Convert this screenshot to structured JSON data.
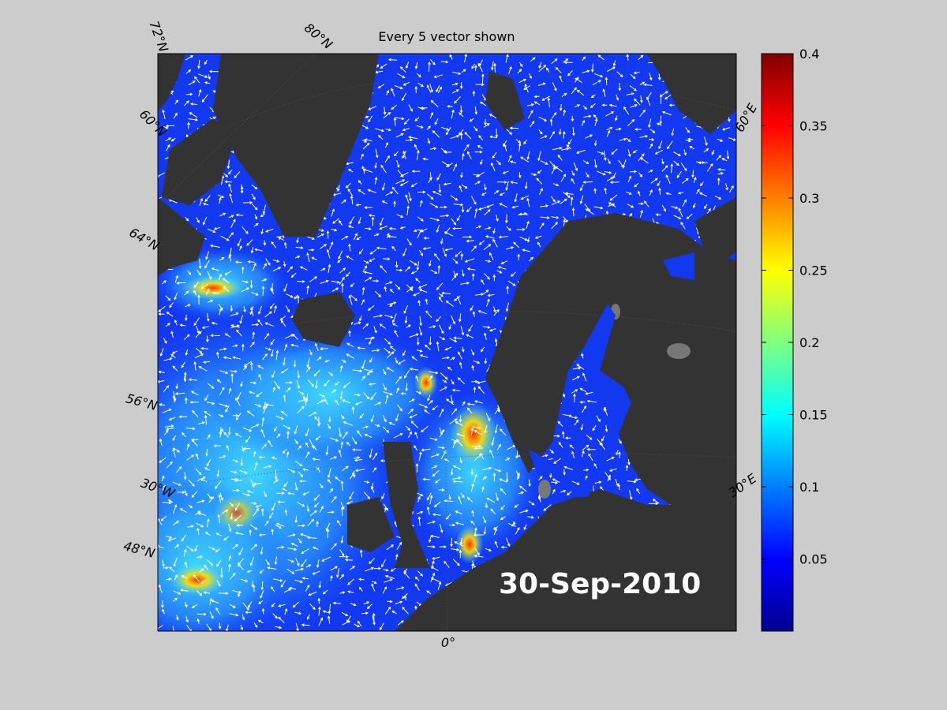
{
  "title": "Every 5 vector shown",
  "date": "30-Sep-2010",
  "graticule_labels": [
    "72°N",
    "80°N",
    "60°N",
    "64°N",
    "56°N",
    "30°W",
    "48°N",
    "0°",
    "30°E",
    "60°E"
  ],
  "colorbar": {
    "type": "colorbar",
    "colormap": "jet",
    "ylim": [
      0,
      0.4
    ],
    "yticks": [
      0.05,
      0.1,
      0.15,
      0.2,
      0.25,
      0.3,
      0.35,
      0.4
    ]
  }
}
